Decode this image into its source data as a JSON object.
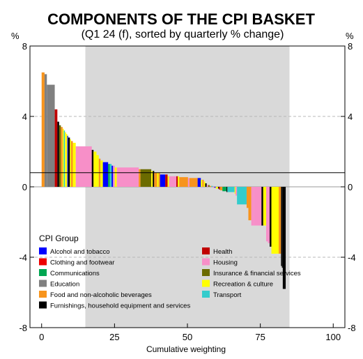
{
  "chart_data": {
    "type": "bar",
    "title": "COMPONENTS OF THE CPI BASKET",
    "subtitle": "(Q1 24 (f), sorted by quarterly % change)",
    "xlabel": "Cumulative weighting",
    "ylabel_left": "%",
    "ylabel_right": "%",
    "xlim": [
      -4,
      104
    ],
    "ylim": [
      -8,
      8
    ],
    "x_ticks": [
      0,
      25,
      50,
      75,
      100
    ],
    "y_ticks": [
      -8,
      -4,
      0,
      4,
      8
    ],
    "x_tick_labels": [
      "0",
      "25",
      "50",
      "75",
      "100"
    ],
    "y_tick_labels": [
      "-8",
      "-4",
      "0",
      "4",
      "8"
    ],
    "grid": "horizontal dashed at y ticks",
    "shaded_region_x": [
      15,
      85
    ],
    "reference_line_y": 0.8,
    "legend": {
      "title": "CPI Group",
      "placement": "bottom-left",
      "items": [
        {
          "name": "Alcohol and tobacco",
          "color": "#0000ff"
        },
        {
          "name": "Clothing and footwear",
          "color": "#ee0000"
        },
        {
          "name": "Communications",
          "color": "#00a651"
        },
        {
          "name": "Education",
          "color": "#808080"
        },
        {
          "name": "Food and non-alcoholic beverages",
          "color": "#f7941d"
        },
        {
          "name": "Furnishings, household equipment and services",
          "color": "#000000"
        },
        {
          "name": "Health",
          "color": "#c00000"
        },
        {
          "name": "Housing",
          "color": "#f78fc8"
        },
        {
          "name": "Insurance & financial services",
          "color": "#6b6b00"
        },
        {
          "name": "Recreation & culture",
          "color": "#ffff00"
        },
        {
          "name": "Transport",
          "color": "#33cccc"
        }
      ]
    },
    "bars": [
      {
        "group": "Food and non-alcoholic beverages",
        "width": 1.0,
        "value": 6.5
      },
      {
        "group": "Education",
        "width": 0.8,
        "value": 6.4
      },
      {
        "group": "Education",
        "width": 2.7,
        "value": 5.8
      },
      {
        "group": "Health",
        "width": 0.9,
        "value": 4.4
      },
      {
        "group": "Furnishings, household equipment and services",
        "width": 0.6,
        "value": 3.7
      },
      {
        "group": "Insurance & financial services",
        "width": 0.6,
        "value": 3.5
      },
      {
        "group": "Food and non-alcoholic beverages",
        "width": 0.6,
        "value": 3.4
      },
      {
        "group": "Recreation & culture",
        "width": 0.4,
        "value": 3.3
      },
      {
        "group": "Transport",
        "width": 0.4,
        "value": 3.2
      },
      {
        "group": "Recreation & culture",
        "width": 0.4,
        "value": 3.1
      },
      {
        "group": "Recreation & culture",
        "width": 0.4,
        "value": 3.0
      },
      {
        "group": "Alcohol and tobacco",
        "width": 0.3,
        "value": 2.9
      },
      {
        "group": "Furnishings, household equipment and services",
        "width": 0.6,
        "value": 2.8
      },
      {
        "group": "Recreation & culture",
        "width": 0.4,
        "value": 2.7
      },
      {
        "group": "Food and non-alcoholic beverages",
        "width": 0.6,
        "value": 2.6
      },
      {
        "group": "Recreation & culture",
        "width": 1.0,
        "value": 2.5
      },
      {
        "group": "Housing",
        "width": 5.5,
        "value": 2.3
      },
      {
        "group": "Furnishings, household equipment and services",
        "width": 0.6,
        "value": 2.1
      },
      {
        "group": "Recreation & culture",
        "width": 1.0,
        "value": 2.0
      },
      {
        "group": "Recreation & culture",
        "width": 0.8,
        "value": 1.8
      },
      {
        "group": "Food and non-alcoholic beverages",
        "width": 0.6,
        "value": 1.6
      },
      {
        "group": "Recreation & culture",
        "width": 0.8,
        "value": 1.5
      },
      {
        "group": "Alcohol and tobacco",
        "width": 1.8,
        "value": 1.4
      },
      {
        "group": "Communications",
        "width": 0.6,
        "value": 1.3
      },
      {
        "group": "Transport",
        "width": 0.6,
        "value": 1.3
      },
      {
        "group": "Alcohol and tobacco",
        "width": 0.5,
        "value": 1.2
      },
      {
        "group": "Housing",
        "width": 0.6,
        "value": 1.2
      },
      {
        "group": "Recreation & culture",
        "width": 0.7,
        "value": 1.1
      },
      {
        "group": "Housing",
        "width": 7.5,
        "value": 1.1
      },
      {
        "group": "Food and non-alcoholic beverages",
        "width": 0.6,
        "value": 1.0
      },
      {
        "group": "Insurance & financial services",
        "width": 3.7,
        "value": 1.0
      },
      {
        "group": "Recreation & culture",
        "width": 0.5,
        "value": 0.9
      },
      {
        "group": "Furnishings, household equipment and services",
        "width": 0.5,
        "value": 0.9
      },
      {
        "group": "Food and non-alcoholic beverages",
        "width": 1.0,
        "value": 0.8
      },
      {
        "group": "Recreation & culture",
        "width": 0.5,
        "value": 0.8
      },
      {
        "group": "Food and non-alcoholic beverages",
        "width": 0.5,
        "value": 0.8
      },
      {
        "group": "Alcohol and tobacco",
        "width": 1.8,
        "value": 0.7
      },
      {
        "group": "Health",
        "width": 0.8,
        "value": 0.7
      },
      {
        "group": "Recreation & culture",
        "width": 0.5,
        "value": 0.6
      },
      {
        "group": "Housing",
        "width": 2.5,
        "value": 0.6
      },
      {
        "group": "Health",
        "width": 0.5,
        "value": 0.6
      },
      {
        "group": "Recreation & culture",
        "width": 0.5,
        "value": 0.6
      },
      {
        "group": "Food and non-alcoholic beverages",
        "width": 3.0,
        "value": 0.55
      },
      {
        "group": "Housing",
        "width": 0.5,
        "value": 0.5
      },
      {
        "group": "Food and non-alcoholic beverages",
        "width": 2.8,
        "value": 0.5
      },
      {
        "group": "Alcohol and tobacco",
        "width": 1.1,
        "value": 0.5
      },
      {
        "group": "Recreation & culture",
        "width": 0.5,
        "value": 0.4
      },
      {
        "group": "Food and non-alcoholic beverages",
        "width": 0.5,
        "value": 0.4
      },
      {
        "group": "Recreation & culture",
        "width": 0.5,
        "value": 0.3
      },
      {
        "group": "Furnishings, household equipment and services",
        "width": 0.5,
        "value": 0.2
      },
      {
        "group": "Housing",
        "width": 0.5,
        "value": 0.1
      },
      {
        "group": "Insurance & financial services",
        "width": 0.5,
        "value": 0.1
      },
      {
        "group": "Food and non-alcoholic beverages",
        "width": 0.6,
        "value": 0.05
      },
      {
        "group": "Transport",
        "width": 0.5,
        "value": 0.05
      },
      {
        "group": "Housing",
        "width": 0.5,
        "value": -0.05
      },
      {
        "group": "Alcohol and tobacco",
        "width": 0.5,
        "value": -0.05
      },
      {
        "group": "Recreation & culture",
        "width": 0.8,
        "value": -0.1
      },
      {
        "group": "Furnishings, household equipment and services",
        "width": 0.3,
        "value": -0.1
      },
      {
        "group": "Health",
        "width": 0.4,
        "value": -0.15
      },
      {
        "group": "Food and non-alcoholic beverages",
        "width": 0.8,
        "value": -0.2
      },
      {
        "group": "Communications",
        "width": 1.4,
        "value": -0.25
      },
      {
        "group": "Furnishings, household equipment and services",
        "width": 0.3,
        "value": -0.3
      },
      {
        "group": "Transport",
        "width": 2.5,
        "value": -0.3
      },
      {
        "group": "Recreation & culture",
        "width": 0.3,
        "value": -0.4
      },
      {
        "group": "Housing",
        "width": 0.5,
        "value": -0.5
      },
      {
        "group": "Transport",
        "width": 3.3,
        "value": -1.0
      },
      {
        "group": "Food and non-alcoholic beverages",
        "width": 0.6,
        "value": -1.2
      },
      {
        "group": "Food and non-alcoholic beverages",
        "width": 1.0,
        "value": -1.9
      },
      {
        "group": "Housing",
        "width": 1.0,
        "value": -2.2
      },
      {
        "group": "Housing",
        "width": 2.5,
        "value": -2.2
      },
      {
        "group": "Furnishings, household equipment and services",
        "width": 0.6,
        "value": -2.2
      },
      {
        "group": "Recreation & culture",
        "width": 1.0,
        "value": -2.2
      },
      {
        "group": "Housing",
        "width": 0.6,
        "value": -3.1
      },
      {
        "group": "Housing",
        "width": 0.6,
        "value": -3.2
      },
      {
        "group": "Furnishings, household equipment and services",
        "width": 0.6,
        "value": -3.4
      },
      {
        "group": "Recreation & culture",
        "width": 2.5,
        "value": -3.8
      },
      {
        "group": "Food and non-alcoholic beverages",
        "width": 0.8,
        "value": -3.8
      },
      {
        "group": "Furnishings, household equipment and services",
        "width": 0.3,
        "value": -4.5
      },
      {
        "group": "Furnishings, household equipment and services",
        "width": 0.3,
        "value": -4.6
      },
      {
        "group": "Furnishings, household equipment and services",
        "width": 1.0,
        "value": -5.8
      }
    ]
  }
}
